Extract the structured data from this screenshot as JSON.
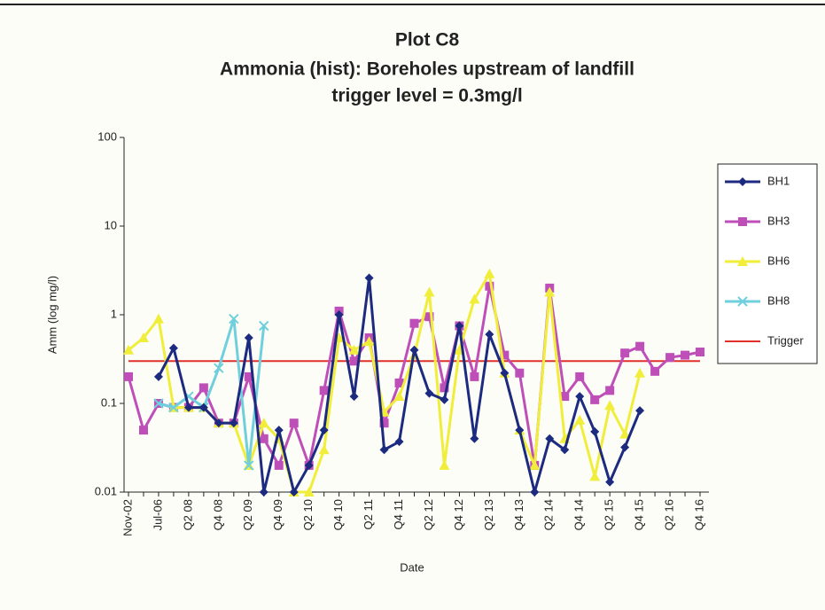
{
  "chart_data": {
    "type": "line",
    "title": "Plot C8",
    "subtitle": "Ammonia (hist): Boreholes upstream of landfill",
    "subtitle2": "trigger level = 0.3mg/l",
    "x_label": "Date",
    "y_label": "Amm (log mg/l)",
    "log_scale": true,
    "ylim": [
      0.01,
      100
    ],
    "yticks": [
      0.01,
      0.1,
      1,
      10,
      100
    ],
    "categories": [
      "Nov-02",
      null,
      "Jul-06",
      null,
      "Q2 08",
      null,
      "Q4 08",
      null,
      "Q2 09",
      null,
      "Q4 09",
      null,
      "Q2 10",
      null,
      "Q4 10",
      null,
      "Q2 11",
      null,
      "Q4 11",
      null,
      "Q2 12",
      null,
      "Q4 12",
      null,
      "Q2 13",
      null,
      "Q4 13",
      null,
      "Q2 14",
      null,
      "Q4 14",
      null,
      "Q2 15",
      null,
      "Q4 15",
      null,
      "Q2 16",
      null,
      "Q4 16"
    ],
    "series": [
      {
        "name": "BH1",
        "color": "#1c2a80",
        "marker": "diamond",
        "values": [
          null,
          null,
          0.2,
          0.42,
          0.09,
          0.09,
          0.06,
          0.06,
          0.55,
          0.01,
          0.05,
          0.01,
          0.02,
          0.05,
          1.0,
          0.12,
          2.6,
          0.03,
          0.037,
          0.4,
          0.13,
          0.11,
          0.75,
          0.04,
          0.6,
          0.22,
          0.05,
          0.01,
          0.04,
          0.03,
          0.12,
          0.048,
          0.013,
          0.032,
          0.083,
          null,
          null,
          null,
          null
        ]
      },
      {
        "name": "BH3",
        "color": "#bf4fb8",
        "marker": "square",
        "values": [
          0.2,
          0.05,
          0.1,
          0.09,
          0.09,
          0.15,
          0.06,
          0.06,
          0.2,
          0.04,
          0.02,
          0.06,
          0.02,
          0.14,
          1.1,
          0.3,
          0.55,
          0.06,
          0.17,
          0.8,
          0.95,
          0.15,
          0.75,
          0.2,
          2.1,
          0.35,
          0.22,
          0.02,
          2.0,
          0.12,
          0.2,
          0.11,
          0.14,
          0.37,
          0.44,
          0.23,
          0.33,
          0.35,
          0.38
        ]
      },
      {
        "name": "BH6",
        "color": "#f0ee3a",
        "marker": "triangle",
        "values": [
          0.4,
          0.55,
          0.9,
          0.09,
          0.09,
          0.09,
          0.06,
          0.06,
          0.02,
          0.06,
          0.04,
          0.01,
          0.01,
          0.03,
          0.55,
          0.4,
          0.5,
          0.08,
          0.12,
          0.35,
          1.8,
          0.02,
          0.4,
          1.5,
          2.9,
          0.22,
          0.05,
          0.02,
          1.8,
          0.04,
          0.065,
          0.015,
          0.095,
          0.045,
          0.22,
          null,
          null,
          null,
          null
        ]
      },
      {
        "name": "BH8",
        "color": "#6fcfdc",
        "marker": "x",
        "values": [
          null,
          null,
          0.1,
          0.09,
          0.12,
          0.09,
          0.25,
          0.9,
          0.02,
          0.75,
          null,
          null,
          null,
          null,
          null,
          null,
          null,
          null,
          null,
          null,
          null,
          null,
          null,
          null,
          null,
          null,
          null,
          null,
          null,
          null,
          null,
          null,
          null,
          null,
          null,
          null,
          null,
          null,
          null
        ]
      },
      {
        "name": "Trigger",
        "color": "#e0302a",
        "marker": "none",
        "values": [
          0.3,
          0.3,
          0.3,
          0.3,
          0.3,
          0.3,
          0.3,
          0.3,
          0.3,
          0.3,
          0.3,
          0.3,
          0.3,
          0.3,
          0.3,
          0.3,
          0.3,
          0.3,
          0.3,
          0.3,
          0.3,
          0.3,
          0.3,
          0.3,
          0.3,
          0.3,
          0.3,
          0.3,
          0.3,
          0.3,
          0.3,
          0.3,
          0.3,
          0.3,
          0.3,
          0.3,
          0.3,
          0.3,
          0.3
        ]
      }
    ]
  }
}
